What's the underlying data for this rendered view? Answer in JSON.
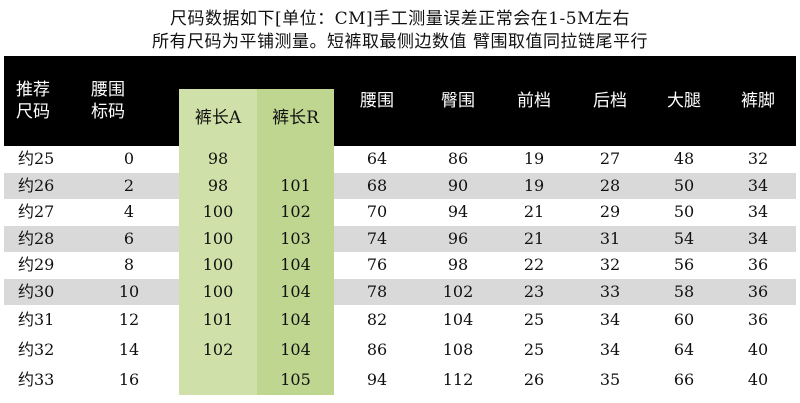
{
  "notes": {
    "line1": "尺码数据如下[单位：CM]手工测量误差正常会在1-5M左右",
    "line2": "所有尺码为平铺测量。短裤取最侧边数值 臂围取值同拉链尾平行"
  },
  "table": {
    "headers": {
      "size": [
        "推荐",
        "尺码"
      ],
      "waist_label": [
        "腰围",
        "标码"
      ],
      "length_a": "裤长A",
      "length_r": "裤长R",
      "waist": "腰围",
      "hip": "臀围",
      "front_rise": "前档",
      "back_rise": "后档",
      "thigh": "大腿",
      "hem": "裤脚"
    },
    "rows": [
      {
        "size": "约25",
        "label": "0",
        "la": "98",
        "lr": "",
        "waist": "64",
        "hip": "86",
        "front": "19",
        "back": "27",
        "thigh": "48",
        "hem": "32"
      },
      {
        "size": "约26",
        "label": "2",
        "la": "98",
        "lr": "101",
        "waist": "68",
        "hip": "90",
        "front": "19",
        "back": "28",
        "thigh": "50",
        "hem": "34"
      },
      {
        "size": "约27",
        "label": "4",
        "la": "100",
        "lr": "102",
        "waist": "70",
        "hip": "94",
        "front": "21",
        "back": "29",
        "thigh": "50",
        "hem": "34"
      },
      {
        "size": "约28",
        "label": "6",
        "la": "100",
        "lr": "103",
        "waist": "74",
        "hip": "96",
        "front": "21",
        "back": "31",
        "thigh": "54",
        "hem": "34"
      },
      {
        "size": "约29",
        "label": "8",
        "la": "100",
        "lr": "104",
        "waist": "76",
        "hip": "98",
        "front": "22",
        "back": "32",
        "thigh": "56",
        "hem": "36"
      },
      {
        "size": "约30",
        "label": "10",
        "la": "100",
        "lr": "104",
        "waist": "78",
        "hip": "102",
        "front": "23",
        "back": "33",
        "thigh": "58",
        "hem": "36"
      },
      {
        "size": "约31",
        "label": "12",
        "la": "101",
        "lr": "104",
        "waist": "82",
        "hip": "104",
        "front": "25",
        "back": "34",
        "thigh": "60",
        "hem": "36"
      },
      {
        "size": "约32",
        "label": "14",
        "la": "102",
        "lr": "104",
        "waist": "86",
        "hip": "108",
        "front": "25",
        "back": "34",
        "thigh": "64",
        "hem": "40"
      },
      {
        "size": "约33",
        "label": "16",
        "la": "",
        "lr": "105",
        "waist": "94",
        "hip": "112",
        "front": "26",
        "back": "35",
        "thigh": "66",
        "hem": "40"
      }
    ]
  }
}
